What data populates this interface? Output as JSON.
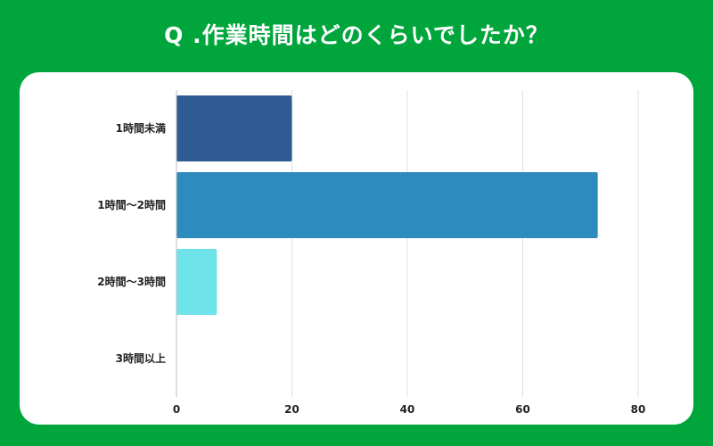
{
  "title": "Q .作業時間はどのくらいでしたか？",
  "colors": {
    "background": "#00a63c",
    "card": "#ffffff",
    "grid": "#e0e0e0",
    "axis": "#bdbdbd"
  },
  "chart_data": {
    "type": "bar",
    "orientation": "horizontal",
    "title": "Q .作業時間はどのくらいでしたか？",
    "categories": [
      "1時間未満",
      "1時間～2時間",
      "2時間～3時間",
      "3時間以上"
    ],
    "values": [
      20,
      73,
      7,
      0
    ],
    "bar_colors": [
      "#2e5b94",
      "#2e8bbd",
      "#6fe3ea",
      "#6fe3ea"
    ],
    "xlim": [
      0,
      80
    ],
    "xticks": [
      0,
      20,
      40,
      60,
      80
    ],
    "xlabel": "",
    "ylabel": "",
    "grid": true,
    "legend": "none"
  }
}
